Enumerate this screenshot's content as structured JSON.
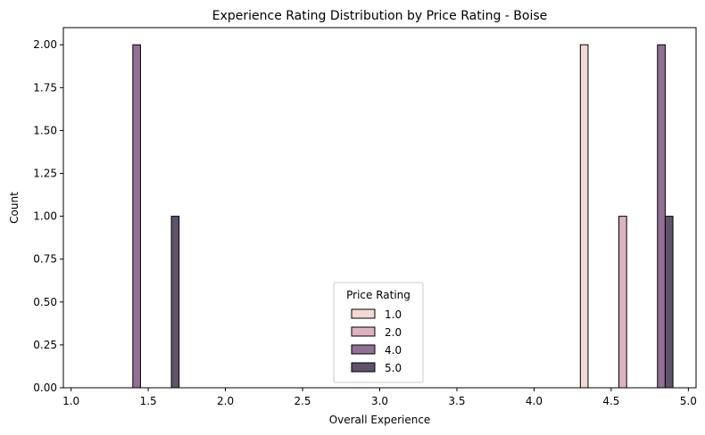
{
  "chart_data": {
    "type": "bar",
    "title": "Experience Rating Distribution by Price Rating - Boise",
    "xlabel": "Overall Experience",
    "ylabel": "Count",
    "xlim": [
      0.95,
      5.05
    ],
    "ylim": [
      0,
      2.1
    ],
    "x_ticks": [
      "1.0",
      "1.5",
      "2.0",
      "2.5",
      "3.0",
      "3.5",
      "4.0",
      "4.5",
      "5.0"
    ],
    "y_ticks": [
      "0.00",
      "0.25",
      "0.50",
      "0.75",
      "1.00",
      "1.25",
      "1.50",
      "1.75",
      "2.00"
    ],
    "grid": false,
    "legend": {
      "title": "Price Rating",
      "placement": "bottom-center"
    },
    "bin_edges": [
      1.1,
      1.3,
      1.5,
      1.7,
      1.9,
      2.1,
      2.3,
      2.5,
      2.7,
      2.9,
      3.1,
      3.3,
      3.5,
      3.7,
      3.9,
      4.1,
      4.3,
      4.5,
      4.7,
      4.9
    ],
    "series": [
      {
        "name": "1.0",
        "color": "#f2d9d3",
        "values": [
          0,
          0,
          0,
          0,
          0,
          0,
          0,
          0,
          0,
          0,
          0,
          0,
          0,
          0,
          0,
          0,
          2,
          0,
          0
        ]
      },
      {
        "name": "2.0",
        "color": "#deb2bf",
        "values": [
          0,
          0,
          0,
          0,
          0,
          0,
          0,
          0,
          0,
          0,
          0,
          0,
          0,
          0,
          0,
          0,
          0,
          1,
          0
        ]
      },
      {
        "name": "4.0",
        "color": "#926f95",
        "values": [
          0,
          2,
          0,
          0,
          0,
          0,
          0,
          0,
          0,
          0,
          0,
          0,
          0,
          0,
          0,
          0,
          0,
          0,
          2
        ]
      },
      {
        "name": "5.0",
        "color": "#5f526b",
        "values": [
          0,
          0,
          1,
          0,
          0,
          0,
          0,
          0,
          0,
          0,
          0,
          0,
          0,
          0,
          0,
          0,
          0,
          0,
          1
        ]
      }
    ]
  }
}
